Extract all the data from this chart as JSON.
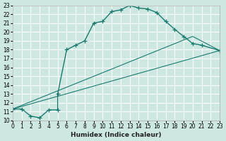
{
  "xlabel": "Humidex (Indice chaleur)",
  "bg_color": "#cce8e0",
  "grid_color": "#ffffff",
  "line_color": "#1a7a6e",
  "xlim": [
    0,
    23
  ],
  "ylim": [
    10,
    23
  ],
  "xticks": [
    0,
    1,
    2,
    3,
    4,
    5,
    6,
    7,
    8,
    9,
    10,
    11,
    12,
    13,
    14,
    15,
    16,
    17,
    18,
    19,
    20,
    21,
    22,
    23
  ],
  "yticks": [
    10,
    11,
    12,
    13,
    14,
    15,
    16,
    17,
    18,
    19,
    20,
    21,
    22,
    23
  ],
  "line1_x": [
    0,
    1,
    2,
    3,
    4,
    5,
    5,
    6,
    7,
    8,
    9,
    10,
    11,
    12,
    13,
    14,
    15,
    16,
    17,
    18,
    19,
    20,
    21,
    23
  ],
  "line1_y": [
    11.3,
    11.3,
    10.5,
    10.3,
    11.2,
    11.2,
    13.0,
    18.0,
    18.5,
    19.0,
    21.0,
    21.2,
    22.3,
    22.5,
    23.0,
    22.7,
    22.6,
    22.2,
    21.2,
    20.3,
    19.5,
    18.7,
    18.5,
    17.9
  ],
  "line2_x": [
    0,
    23
  ],
  "line2_y": [
    11.3,
    17.9
  ],
  "line3_x": [
    0,
    20,
    23
  ],
  "line3_y": [
    11.3,
    19.5,
    17.9
  ]
}
